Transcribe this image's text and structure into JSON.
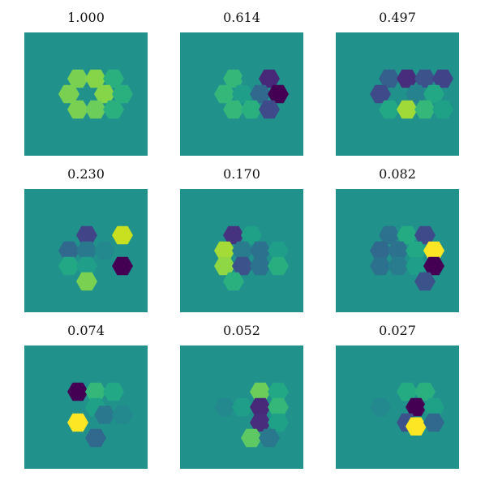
{
  "chart_data": [
    {
      "type": "heatmap",
      "title": "1.000",
      "background": "#21918c",
      "cells": [
        {
          "col": 0,
          "row": -1,
          "color": "#7ad151"
        },
        {
          "col": 1,
          "row": -1,
          "color": "#86d549"
        },
        {
          "col": 2,
          "row": -1,
          "color": "#2ab07f"
        },
        {
          "col": -0.5,
          "row": 0,
          "color": "#7ad151"
        },
        {
          "col": 1.5,
          "row": 0,
          "color": "#86d549"
        },
        {
          "col": 2.5,
          "row": 0,
          "color": "#2ab07f"
        },
        {
          "col": 0,
          "row": 1,
          "color": "#7ad151"
        },
        {
          "col": 1,
          "row": 1,
          "color": "#6ccd5a"
        },
        {
          "col": 2,
          "row": 1,
          "color": "#2ab07f"
        }
      ]
    },
    {
      "type": "heatmap",
      "title": "0.614",
      "background": "#21918c",
      "cells": [
        {
          "col": 0,
          "row": -1,
          "color": "#35b779"
        },
        {
          "col": 1,
          "row": -1,
          "color": "#21918c"
        },
        {
          "col": 2,
          "row": -1,
          "color": "#482878"
        },
        {
          "col": -0.5,
          "row": 0,
          "color": "#35b779"
        },
        {
          "col": 0.5,
          "row": 0,
          "color": "#1f9e89"
        },
        {
          "col": 1.5,
          "row": 0,
          "color": "#31688e"
        },
        {
          "col": 2.5,
          "row": 0,
          "color": "#440154"
        },
        {
          "col": 0,
          "row": 1,
          "color": "#35b779"
        },
        {
          "col": 1,
          "row": 1,
          "color": "#2ab07f"
        },
        {
          "col": 2,
          "row": 1,
          "color": "#3e4a89"
        }
      ]
    },
    {
      "type": "heatmap",
      "title": "0.497",
      "background": "#21918c",
      "cells": [
        {
          "col": 0,
          "row": -1,
          "color": "#355f8d"
        },
        {
          "col": 1,
          "row": -1,
          "color": "#472d7b"
        },
        {
          "col": 2,
          "row": -1,
          "color": "#3b528b"
        },
        {
          "col": 3,
          "row": -1,
          "color": "#404387"
        },
        {
          "col": -0.5,
          "row": 0,
          "color": "#3e4a89"
        },
        {
          "col": 1.5,
          "row": 0,
          "color": "#26828e"
        },
        {
          "col": 2.5,
          "row": 0,
          "color": "#22a884"
        },
        {
          "col": 0,
          "row": 1,
          "color": "#22a884"
        },
        {
          "col": 1,
          "row": 1,
          "color": "#a0da39"
        },
        {
          "col": 2,
          "row": 1,
          "color": "#35b779"
        },
        {
          "col": 3,
          "row": 1,
          "color": "#1fa187"
        }
      ]
    },
    {
      "type": "heatmap",
      "title": "0.230",
      "background": "#21918c",
      "cells": [
        {
          "col": 0.5,
          "row": -1,
          "color": "#414487"
        },
        {
          "col": 2.5,
          "row": -1,
          "color": "#c8e020"
        },
        {
          "col": -0.5,
          "row": 0,
          "color": "#31688e"
        },
        {
          "col": 0.5,
          "row": 0,
          "color": "#2a788e"
        },
        {
          "col": 1.5,
          "row": 0,
          "color": "#23898e"
        },
        {
          "col": -0.5,
          "row": 1,
          "color": "#22a884"
        },
        {
          "col": 0.5,
          "row": 1,
          "color": "#1f9e89"
        },
        {
          "col": 2.5,
          "row": 1,
          "color": "#440154"
        },
        {
          "col": 0.5,
          "row": 2,
          "color": "#7ad151"
        }
      ]
    },
    {
      "type": "heatmap",
      "title": "0.170",
      "background": "#21918c",
      "cells": [
        {
          "col": 0,
          "row": -1,
          "color": "#46337f"
        },
        {
          "col": 1,
          "row": -1,
          "color": "#1fa187"
        },
        {
          "col": -0.5,
          "row": 0,
          "color": "#a5db36"
        },
        {
          "col": 0.5,
          "row": 0,
          "color": "#287c8e"
        },
        {
          "col": 1.5,
          "row": 0,
          "color": "#2c728e"
        },
        {
          "col": 2.5,
          "row": 0,
          "color": "#1f9e89"
        },
        {
          "col": -0.5,
          "row": 1,
          "color": "#8fd744"
        },
        {
          "col": 0.5,
          "row": 1,
          "color": "#3b528b"
        },
        {
          "col": 1.5,
          "row": 1,
          "color": "#2c728e"
        },
        {
          "col": 2.5,
          "row": 1,
          "color": "#29af7f"
        },
        {
          "col": 0,
          "row": 2,
          "color": "#2ab07f"
        }
      ]
    },
    {
      "type": "heatmap",
      "title": "0.082",
      "background": "#21918c",
      "cells": [
        {
          "col": 0,
          "row": -1,
          "color": "#2c728e"
        },
        {
          "col": 1,
          "row": -1,
          "color": "#25ab82"
        },
        {
          "col": 2,
          "row": -1,
          "color": "#3e4a89"
        },
        {
          "col": -0.5,
          "row": 0,
          "color": "#31688e"
        },
        {
          "col": 0.5,
          "row": 0,
          "color": "#2c728e"
        },
        {
          "col": 1.5,
          "row": 0,
          "color": "#22a884"
        },
        {
          "col": 2.5,
          "row": 0,
          "color": "#fde725"
        },
        {
          "col": -0.5,
          "row": 1,
          "color": "#2c728e"
        },
        {
          "col": 0.5,
          "row": 1,
          "color": "#287c8e"
        },
        {
          "col": 1.5,
          "row": 1,
          "color": "#1f9e89"
        },
        {
          "col": 2.5,
          "row": 1,
          "color": "#440154"
        },
        {
          "col": 2,
          "row": 2,
          "color": "#3b528b"
        }
      ]
    },
    {
      "type": "heatmap",
      "title": "0.074",
      "background": "#21918c",
      "cells": [
        {
          "col": 0,
          "row": -1,
          "color": "#440154"
        },
        {
          "col": 1,
          "row": -1,
          "color": "#35b779"
        },
        {
          "col": 2,
          "row": -1,
          "color": "#22a884"
        },
        {
          "col": 0,
          "row": 1,
          "color": "#fde725"
        },
        {
          "col": 1,
          "row": 0,
          "color": "#1fa187"
        },
        {
          "col": 1.5,
          "row": 0.5,
          "color": "#2a788e"
        },
        {
          "col": 2.5,
          "row": 0.5,
          "color": "#23898e"
        },
        {
          "col": 1,
          "row": 2,
          "color": "#31688e"
        }
      ]
    },
    {
      "type": "heatmap",
      "title": "0.052",
      "background": "#21918c",
      "cells": [
        {
          "col": -0.5,
          "row": 0,
          "color": "#23898e"
        },
        {
          "col": 0.5,
          "row": 0,
          "color": "#1f9e89"
        },
        {
          "col": 1.5,
          "row": -1,
          "color": "#6ccd5a"
        },
        {
          "col": 2.5,
          "row": -1,
          "color": "#22a884"
        },
        {
          "col": 1.5,
          "row": 0,
          "color": "#482878"
        },
        {
          "col": 2.5,
          "row": 0,
          "color": "#35b779"
        },
        {
          "col": 1.5,
          "row": 1,
          "color": "#472d7b"
        },
        {
          "col": 2.5,
          "row": 1,
          "color": "#1fa187"
        },
        {
          "col": 1,
          "row": 2,
          "color": "#5ec962"
        },
        {
          "col": 2,
          "row": 2,
          "color": "#2a788e"
        }
      ]
    },
    {
      "type": "heatmap",
      "title": "0.027",
      "background": "#21918c",
      "cells": [
        {
          "col": 1,
          "row": -1,
          "color": "#25ab82"
        },
        {
          "col": 2,
          "row": -1,
          "color": "#2ab07f"
        },
        {
          "col": -0.5,
          "row": 0,
          "color": "#23898e"
        },
        {
          "col": 1.5,
          "row": 0,
          "color": "#440154"
        },
        {
          "col": 2.5,
          "row": 0,
          "color": "#1fa187"
        },
        {
          "col": 1,
          "row": 1,
          "color": "#3b528b"
        },
        {
          "col": 1.5,
          "row": 1.25,
          "color": "#fde725"
        },
        {
          "col": 2.5,
          "row": 1,
          "color": "#31688e"
        }
      ]
    }
  ]
}
